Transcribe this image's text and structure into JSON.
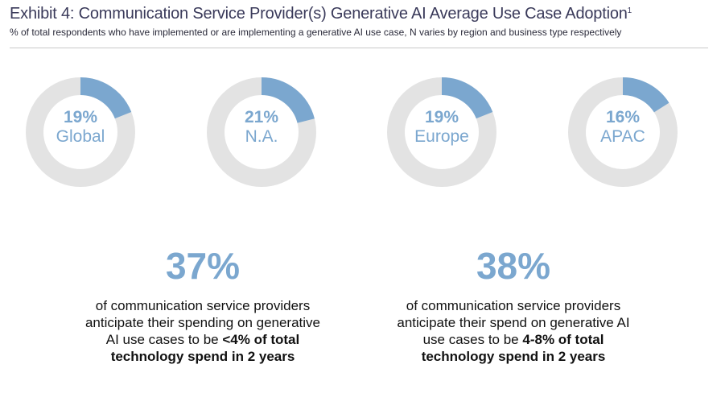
{
  "header": {
    "title": "Exhibit 4: Communication Service Provider(s) Generative AI Average Use Case Adoption",
    "footnote_marker": "1",
    "subtitle": "% of total respondents who have implemented or are implementing a generative AI use case, N varies by region and business type respectively"
  },
  "chart_data": {
    "type": "pie",
    "style": "donut",
    "colors": {
      "filled": "#7ba7cf",
      "remainder": "#e3e3e3"
    },
    "series": [
      {
        "region": "Global",
        "value": 19,
        "label": "19%"
      },
      {
        "region": "N.A.",
        "value": 21,
        "label": "21%"
      },
      {
        "region": "Europe",
        "value": 19,
        "label": "19%"
      },
      {
        "region": "APAC",
        "value": 16,
        "label": "16%"
      }
    ]
  },
  "stats": [
    {
      "value": "37%",
      "text_lines": [
        "of communication service providers",
        "anticipate their spending on generative",
        "AI use cases to be "
      ],
      "bold_inline": "<4% of total",
      "bold_line": "technology spend in 2 years"
    },
    {
      "value": "38%",
      "text_lines": [
        "of communication service providers",
        "anticipate their spend on generative AI",
        "use cases to be "
      ],
      "bold_inline": "4-8% of total",
      "bold_line": "technology spend in 2 years"
    }
  ]
}
